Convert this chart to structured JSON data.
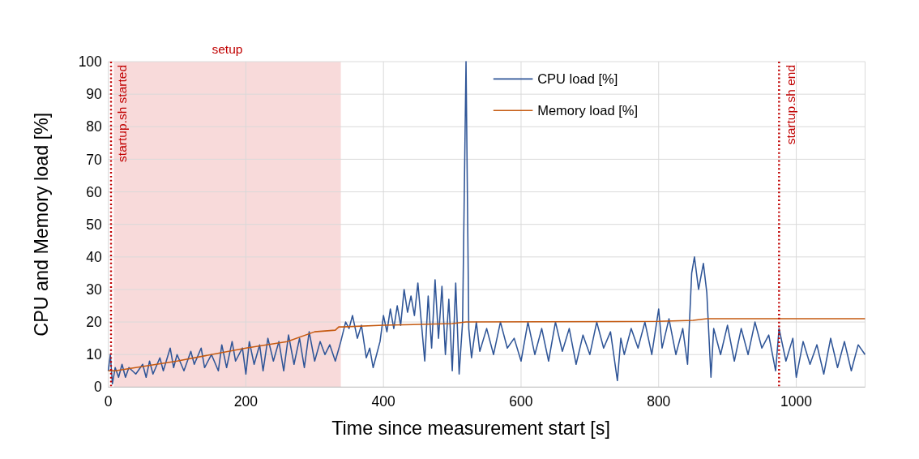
{
  "chart_data": {
    "type": "line",
    "xlabel": "Time since measurement start [s]",
    "ylabel": "CPU and Memory load [%]",
    "xlim": [
      0,
      1100
    ],
    "xticks": [
      0,
      200,
      400,
      600,
      800,
      1000
    ],
    "ylim": [
      0,
      100
    ],
    "yticks": [
      0,
      10,
      20,
      30,
      40,
      50,
      60,
      70,
      80,
      90,
      100
    ],
    "grid": true,
    "legend": "top right",
    "bands": [
      {
        "axis": "x",
        "from": 8,
        "to": 338,
        "label": "setup",
        "color": "#f8dada"
      }
    ],
    "ref_lines": [
      {
        "axis": "x",
        "value": 4,
        "label": "startup.sh started",
        "color": "#c00000",
        "line_style": "dotted"
      },
      {
        "axis": "x",
        "value": 975,
        "label": "startup.sh end",
        "color": "#c00000",
        "line_style": "dotted"
      }
    ],
    "series": [
      {
        "name": "CPU load [%]",
        "color": "#2f5597",
        "x": [
          0,
          3,
          6,
          10,
          15,
          20,
          25,
          30,
          40,
          50,
          55,
          60,
          65,
          75,
          80,
          90,
          95,
          100,
          110,
          120,
          125,
          135,
          140,
          150,
          160,
          165,
          172,
          180,
          185,
          195,
          200,
          205,
          212,
          220,
          225,
          232,
          240,
          248,
          255,
          262,
          270,
          278,
          285,
          292,
          300,
          308,
          315,
          322,
          330,
          338,
          345,
          350,
          355,
          362,
          368,
          375,
          380,
          385,
          390,
          395,
          400,
          405,
          410,
          415,
          420,
          425,
          430,
          435,
          440,
          445,
          450,
          455,
          460,
          465,
          470,
          475,
          480,
          485,
          490,
          495,
          500,
          505,
          510,
          515,
          520,
          524,
          528,
          535,
          540,
          550,
          560,
          570,
          580,
          590,
          600,
          610,
          620,
          630,
          640,
          650,
          660,
          670,
          680,
          690,
          700,
          710,
          720,
          730,
          740,
          745,
          750,
          760,
          770,
          780,
          790,
          800,
          805,
          815,
          825,
          835,
          842,
          848,
          852,
          858,
          865,
          870,
          876,
          880,
          890,
          900,
          910,
          920,
          930,
          940,
          950,
          960,
          970,
          975,
          985,
          995,
          1000,
          1010,
          1020,
          1030,
          1040,
          1050,
          1060,
          1070,
          1080,
          1090,
          1100
        ],
        "values": [
          5,
          10,
          1,
          6,
          3,
          7,
          3,
          6,
          4,
          7,
          3,
          8,
          4,
          9,
          5,
          12,
          6,
          10,
          5,
          11,
          7,
          12,
          6,
          10,
          5,
          13,
          6,
          14,
          8,
          12,
          4,
          14,
          7,
          13,
          5,
          15,
          8,
          14,
          5,
          16,
          7,
          15,
          6,
          17,
          8,
          14,
          10,
          13,
          8,
          14,
          20,
          18,
          22,
          15,
          19,
          9,
          12,
          6,
          10,
          14,
          22,
          17,
          24,
          18,
          25,
          19,
          30,
          23,
          28,
          22,
          32,
          20,
          8,
          28,
          12,
          33,
          15,
          31,
          10,
          27,
          5,
          32,
          4,
          20,
          100,
          18,
          9,
          20,
          11,
          18,
          10,
          20,
          12,
          15,
          8,
          20,
          10,
          18,
          8,
          20,
          11,
          18,
          7,
          16,
          10,
          20,
          12,
          17,
          2,
          15,
          10,
          18,
          12,
          20,
          10,
          24,
          12,
          21,
          10,
          18,
          7,
          35,
          40,
          30,
          38,
          29,
          3,
          18,
          10,
          19,
          8,
          18,
          10,
          20,
          12,
          16,
          5,
          18,
          8,
          15,
          3,
          14,
          7,
          13,
          4,
          15,
          6,
          14,
          5,
          13,
          10
        ]
      },
      {
        "name": "Memory load [%]",
        "color": "#c55a11",
        "x": [
          0,
          10,
          100,
          200,
          260,
          300,
          330,
          335,
          340,
          400,
          500,
          520,
          800,
          850,
          870,
          1100
        ],
        "values": [
          5,
          5,
          8,
          12,
          14,
          17,
          17.5,
          18.5,
          18.5,
          19,
          19.5,
          20,
          20.2,
          20.5,
          21,
          21
        ]
      }
    ]
  }
}
